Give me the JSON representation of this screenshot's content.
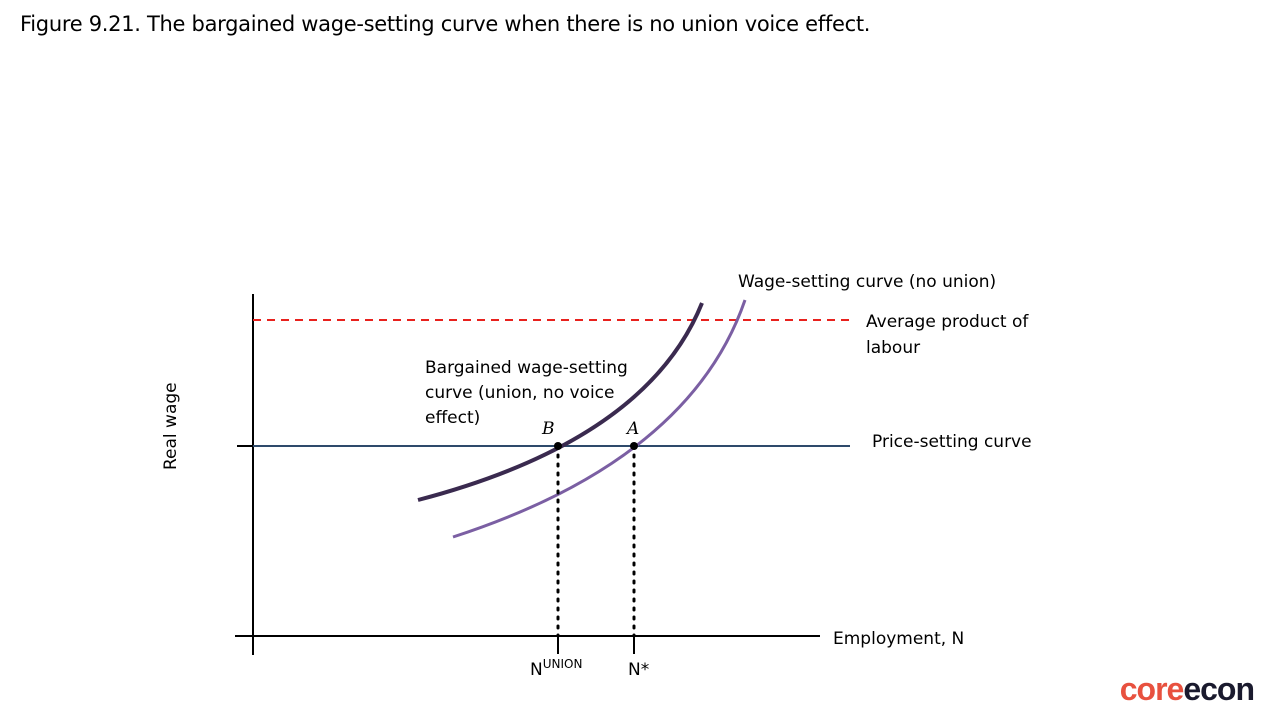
{
  "caption": "Figure 9.21. The bargained wage-setting curve when there is no union voice effect.",
  "axes": {
    "y_label": "Real wage",
    "x_label": "Employment, N"
  },
  "curves": {
    "wage_setting_no_union": "Wage-setting curve (no union)",
    "average_product": [
      "Average product of",
      "labour"
    ],
    "bargained": [
      "Bargained wage-setting",
      "curve (union, no voice",
      "effect)"
    ],
    "price_setting": "Price-setting curve"
  },
  "points": {
    "b": "B",
    "a": "A"
  },
  "ticks": {
    "n_union_base": "N",
    "n_union_sup": "UNION",
    "n_star": "N*"
  },
  "brand": {
    "part1": "core",
    "part2": "econ"
  },
  "colors": {
    "avg_product": "#e8211d",
    "price_setting": "#2e4a6b",
    "bargained": "#3a2a4f",
    "wage_setting": "#7b5fa3"
  }
}
